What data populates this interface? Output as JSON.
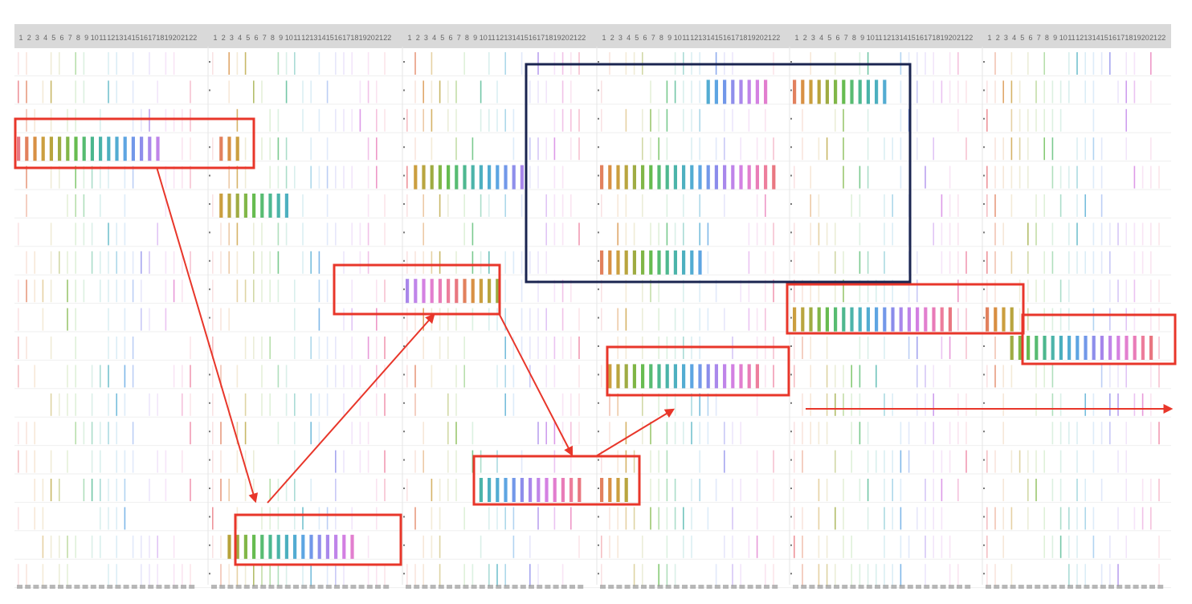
{
  "chart_data": {
    "type": "heatmap",
    "panels": 6,
    "columns_per_panel": 22,
    "rows": 19,
    "column_labels": [
      "1",
      "2",
      "3",
      "4",
      "5",
      "6",
      "7",
      "8",
      "9",
      "10",
      "11",
      "12",
      "13",
      "14",
      "15",
      "16",
      "17",
      "18",
      "19",
      "20",
      "21",
      "22"
    ],
    "palette": [
      "#e8707a",
      "#e07a55",
      "#d68a3a",
      "#c89a36",
      "#b5a035",
      "#9aa83a",
      "#7ab33f",
      "#5fb848",
      "#4fb86a",
      "#45b48a",
      "#42b0a5",
      "#45acbd",
      "#4aa8d0",
      "#55a0e0",
      "#6b92e8",
      "#8888ea",
      "#a482ea",
      "#bd7ee8",
      "#d27ae0",
      "#e078cc",
      "#e876b4",
      "#ec7898"
    ],
    "annotations": {
      "highlight_boxes": 8,
      "context_box": "navy rectangle spanning panels 3-5, rows 1-8",
      "arrows": "red path linking highlighted boxes, then horizontal arrow to the right"
    },
    "grid": true,
    "legend": "none"
  },
  "colors": {
    "highlight": "#e8362a",
    "context": "#1a2450",
    "header_bg": "#d9d9d9",
    "header_text": "#666666",
    "row_guide": "#efefef"
  }
}
